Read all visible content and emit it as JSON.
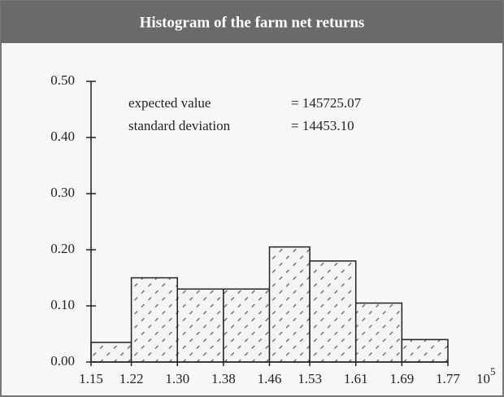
{
  "chart_data": {
    "type": "histogram",
    "title": "Histogram of the farm net returns",
    "bins": [
      1.15,
      1.22,
      1.3,
      1.38,
      1.46,
      1.53,
      1.61,
      1.69,
      1.77
    ],
    "counts": [
      0.035,
      0.15,
      0.13,
      0.13,
      0.205,
      0.18,
      0.105,
      0.04
    ],
    "xlim": [
      1.15,
      1.77
    ],
    "xticks": [
      {
        "value": 1.15,
        "label": "1.15"
      },
      {
        "value": 1.22,
        "label": "1.22"
      },
      {
        "value": 1.3,
        "label": "1.30"
      },
      {
        "value": 1.38,
        "label": "1.38"
      },
      {
        "value": 1.46,
        "label": "1.46"
      },
      {
        "value": 1.53,
        "label": "1.53"
      },
      {
        "value": 1.61,
        "label": "1.61"
      },
      {
        "value": 1.69,
        "label": "1.69"
      },
      {
        "value": 1.77,
        "label": "1.77"
      }
    ],
    "ylim": [
      0,
      0.5
    ],
    "yticks": [
      {
        "value": 0,
        "label": "0.00"
      },
      {
        "value": 0.1,
        "label": "0.10"
      },
      {
        "value": 0.2,
        "label": "0.20"
      },
      {
        "value": 0.3,
        "label": "0.30"
      },
      {
        "value": 0.4,
        "label": "0.40"
      },
      {
        "value": 0.5,
        "label": "0.50"
      }
    ],
    "x_scale_label": {
      "base": "10",
      "exponent": "5"
    },
    "annotations": [
      {
        "label": "expected value",
        "value": "= 145725.07"
      },
      {
        "label": "standard deviation",
        "value": "= 14453.10"
      }
    ],
    "color": "#f4f4f4"
  }
}
